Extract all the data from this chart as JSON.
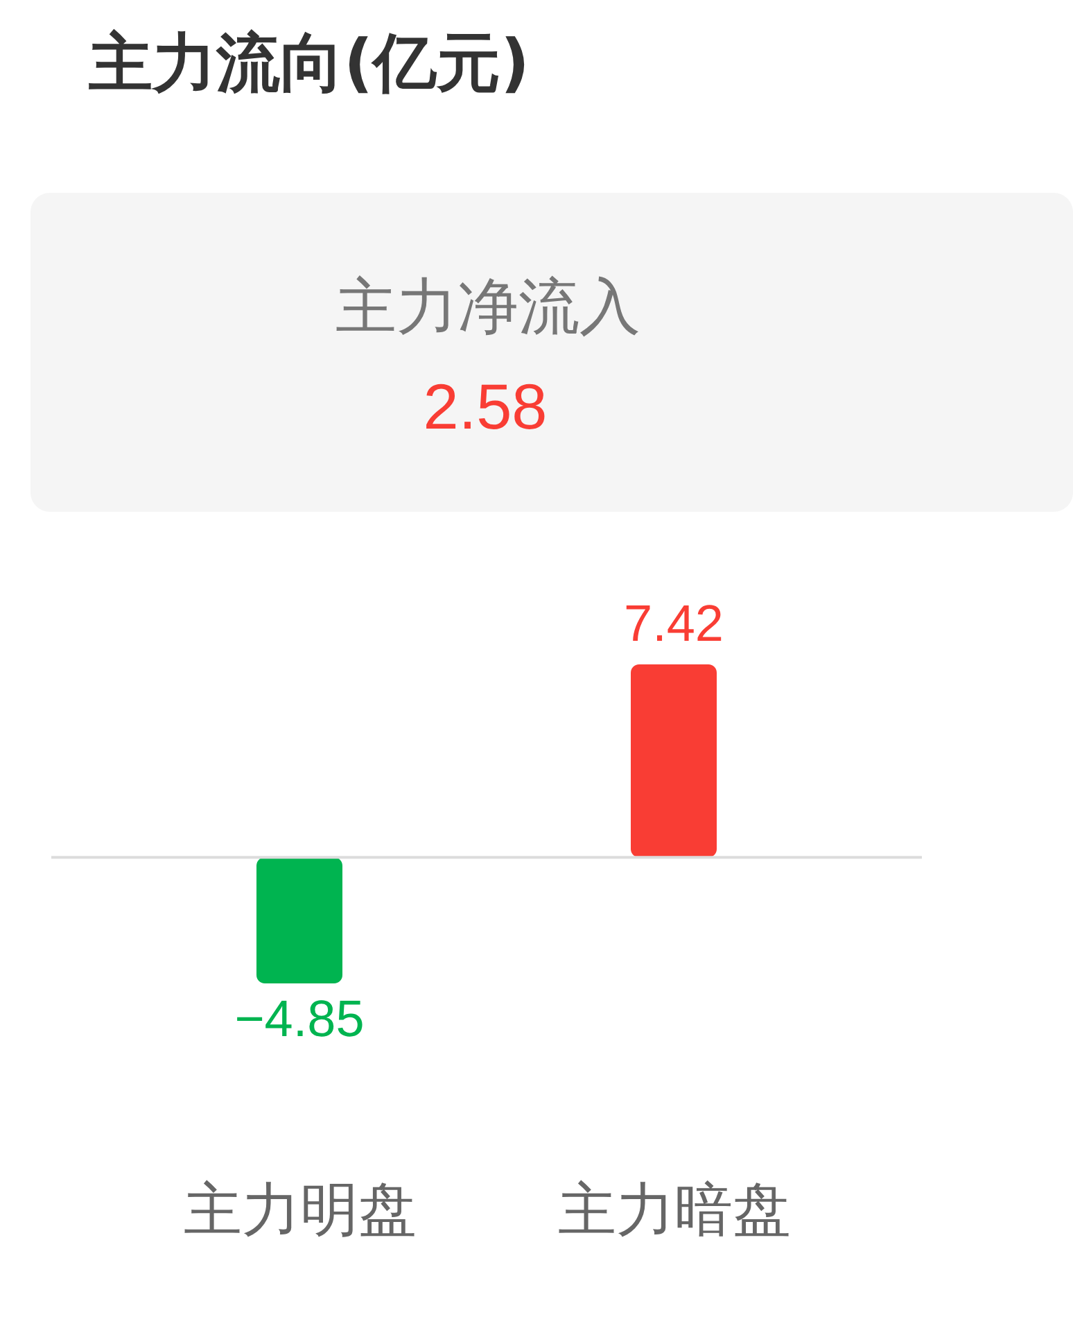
{
  "chart_data": {
    "type": "bar",
    "title": "主力流向(亿元)",
    "categories": [
      "主力明盘",
      "主力暗盘"
    ],
    "values": [
      -4.85,
      7.42
    ],
    "colors": [
      "#00b450",
      "#f93d34"
    ],
    "data_labels": true,
    "annotations": [
      "主力净流入",
      "2.58"
    ]
  }
}
